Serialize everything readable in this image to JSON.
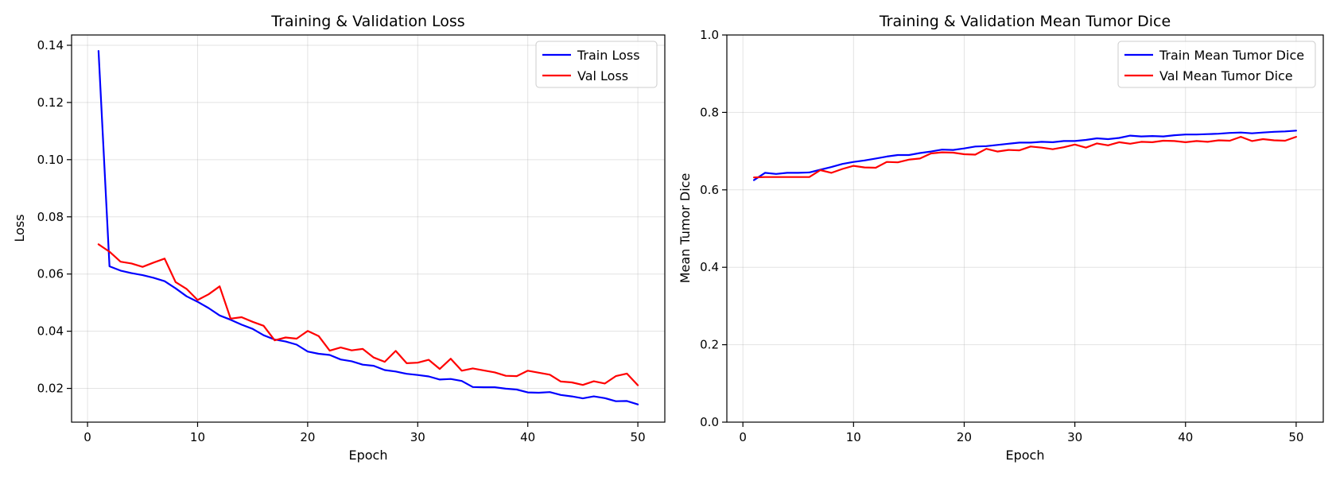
{
  "chart_data": [
    {
      "type": "line",
      "title": "Training & Validation Loss",
      "xlabel": "Epoch",
      "ylabel": "Loss",
      "xlim": [
        -1.45,
        52.45
      ],
      "ylim": [
        0.0082,
        0.1436
      ],
      "xticks": [
        0,
        10,
        20,
        30,
        40,
        50
      ],
      "yticks": [
        0.02,
        0.04,
        0.06,
        0.08,
        0.1,
        0.12,
        0.14
      ],
      "ytick_labels": [
        "0.02",
        "0.04",
        "0.06",
        "0.08",
        "0.10",
        "0.12",
        "0.14"
      ],
      "grid": true,
      "legend": "top-right",
      "series": [
        {
          "name": "Train Loss",
          "color": "#0000ff",
          "x": [
            1,
            2,
            3,
            4,
            5,
            6,
            7,
            8,
            9,
            10,
            11,
            12,
            13,
            14,
            15,
            16,
            17,
            18,
            19,
            20,
            21,
            22,
            23,
            24,
            25,
            26,
            27,
            28,
            29,
            30,
            31,
            32,
            33,
            34,
            35,
            36,
            37,
            38,
            39,
            40,
            41,
            42,
            43,
            44,
            45,
            46,
            47,
            48,
            49,
            50
          ],
          "values": [
            0.138,
            0.0627,
            0.0612,
            0.0603,
            0.0596,
            0.0587,
            0.0575,
            0.055,
            0.0522,
            0.0503,
            0.0481,
            0.0455,
            0.044,
            0.0423,
            0.0408,
            0.0386,
            0.0371,
            0.0364,
            0.0353,
            0.0329,
            0.0321,
            0.0317,
            0.0301,
            0.0295,
            0.0283,
            0.0279,
            0.0264,
            0.0259,
            0.0251,
            0.0247,
            0.0242,
            0.0231,
            0.0233,
            0.0226,
            0.0205,
            0.0204,
            0.0204,
            0.0199,
            0.0196,
            0.0186,
            0.0185,
            0.0187,
            0.0177,
            0.0172,
            0.0165,
            0.0172,
            0.0166,
            0.0155,
            0.0156,
            0.0144
          ]
        },
        {
          "name": "Val Loss",
          "color": "#ff0000",
          "x": [
            1,
            2,
            3,
            4,
            5,
            6,
            7,
            8,
            9,
            10,
            11,
            12,
            13,
            14,
            15,
            16,
            17,
            18,
            19,
            20,
            21,
            22,
            23,
            24,
            25,
            26,
            27,
            28,
            29,
            30,
            31,
            32,
            33,
            34,
            35,
            36,
            37,
            38,
            39,
            40,
            41,
            42,
            43,
            44,
            45,
            46,
            47,
            48,
            49,
            50
          ],
          "values": [
            0.0704,
            0.0678,
            0.0643,
            0.0637,
            0.0625,
            0.064,
            0.0654,
            0.0572,
            0.0548,
            0.0509,
            0.0529,
            0.0557,
            0.0444,
            0.0449,
            0.0433,
            0.0419,
            0.0368,
            0.0378,
            0.0374,
            0.0401,
            0.0383,
            0.0332,
            0.0343,
            0.0333,
            0.0338,
            0.0308,
            0.0293,
            0.0331,
            0.0288,
            0.029,
            0.03,
            0.0268,
            0.0304,
            0.0262,
            0.027,
            0.0263,
            0.0256,
            0.0244,
            0.0243,
            0.0262,
            0.0255,
            0.0248,
            0.0224,
            0.0221,
            0.0212,
            0.0225,
            0.0217,
            0.0243,
            0.0252,
            0.0211
          ]
        }
      ]
    },
    {
      "type": "line",
      "title": "Training & Validation Mean Tumor Dice",
      "xlabel": "Epoch",
      "ylabel": "Mean Tumor Dice",
      "xlim": [
        -1.45,
        52.45
      ],
      "ylim": [
        0.0,
        1.0
      ],
      "xticks": [
        0,
        10,
        20,
        30,
        40,
        50
      ],
      "yticks": [
        0.0,
        0.2,
        0.4,
        0.6,
        0.8,
        1.0
      ],
      "ytick_labels": [
        "0.0",
        "0.2",
        "0.4",
        "0.6",
        "0.8",
        "1.0"
      ],
      "grid": true,
      "legend": "top-right",
      "series": [
        {
          "name": "Train Mean Tumor Dice",
          "color": "#0000ff",
          "x": [
            1,
            2,
            3,
            4,
            5,
            6,
            7,
            8,
            9,
            10,
            11,
            12,
            13,
            14,
            15,
            16,
            17,
            18,
            19,
            20,
            21,
            22,
            23,
            24,
            25,
            26,
            27,
            28,
            29,
            30,
            31,
            32,
            33,
            34,
            35,
            36,
            37,
            38,
            39,
            40,
            41,
            42,
            43,
            44,
            45,
            46,
            47,
            48,
            49,
            50
          ],
          "values": [
            0.625,
            0.644,
            0.641,
            0.644,
            0.644,
            0.645,
            0.652,
            0.659,
            0.667,
            0.672,
            0.676,
            0.681,
            0.686,
            0.69,
            0.69,
            0.695,
            0.699,
            0.704,
            0.703,
            0.707,
            0.712,
            0.713,
            0.716,
            0.719,
            0.722,
            0.722,
            0.724,
            0.723,
            0.726,
            0.726,
            0.729,
            0.733,
            0.731,
            0.734,
            0.74,
            0.738,
            0.739,
            0.738,
            0.741,
            0.743,
            0.743,
            0.744,
            0.745,
            0.747,
            0.748,
            0.746,
            0.748,
            0.75,
            0.751,
            0.753
          ]
        },
        {
          "name": "Val Mean Tumor Dice",
          "color": "#ff0000",
          "x": [
            1,
            2,
            3,
            4,
            5,
            6,
            7,
            8,
            9,
            10,
            11,
            12,
            13,
            14,
            15,
            16,
            17,
            18,
            19,
            20,
            21,
            22,
            23,
            24,
            25,
            26,
            27,
            28,
            29,
            30,
            31,
            32,
            33,
            34,
            35,
            36,
            37,
            38,
            39,
            40,
            41,
            42,
            43,
            44,
            45,
            46,
            47,
            48,
            49,
            50
          ],
          "values": [
            0.632,
            0.633,
            0.633,
            0.633,
            0.633,
            0.633,
            0.651,
            0.644,
            0.654,
            0.662,
            0.658,
            0.657,
            0.672,
            0.671,
            0.678,
            0.681,
            0.694,
            0.697,
            0.696,
            0.692,
            0.691,
            0.706,
            0.699,
            0.703,
            0.702,
            0.712,
            0.709,
            0.705,
            0.71,
            0.717,
            0.709,
            0.72,
            0.715,
            0.723,
            0.719,
            0.724,
            0.723,
            0.727,
            0.726,
            0.723,
            0.726,
            0.724,
            0.728,
            0.727,
            0.737,
            0.726,
            0.731,
            0.728,
            0.727,
            0.737
          ]
        }
      ]
    }
  ]
}
